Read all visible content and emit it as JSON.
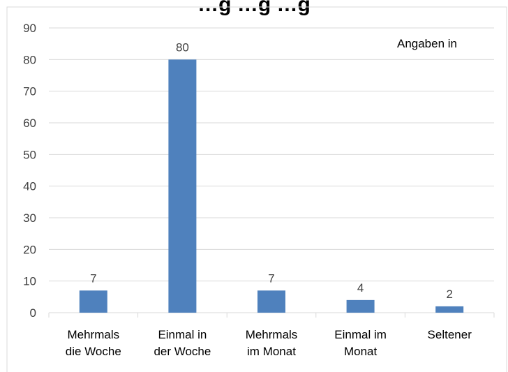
{
  "chart_data": {
    "type": "bar",
    "title": "…g  …g  …g",
    "annotation": "Angaben in",
    "categories": [
      [
        "Mehrmals",
        "die Woche"
      ],
      [
        "Einmal in",
        "der Woche"
      ],
      [
        "Mehrmals",
        "im Monat"
      ],
      [
        "Einmal im",
        "Monat"
      ],
      [
        "Seltener"
      ]
    ],
    "values": [
      7,
      80,
      7,
      4,
      2
    ],
    "ylim": [
      0,
      90
    ],
    "yticks": [
      0,
      10,
      20,
      30,
      40,
      50,
      60,
      70,
      80,
      90
    ],
    "bar_color": "#4f81bd",
    "grid": true,
    "legend": "none"
  }
}
